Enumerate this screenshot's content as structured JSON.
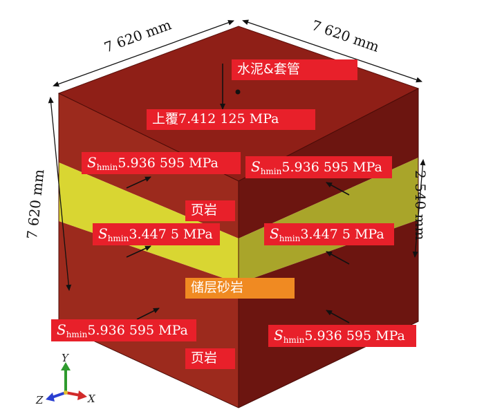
{
  "dimensions": {
    "top_left": "7 620 mm",
    "top_right": "7 620 mm",
    "left_height": "7 620 mm",
    "right_layer": "2 540 mm"
  },
  "labels": {
    "cement_casing": "水泥&套管",
    "overburden": "上覆7.412 125 MPa",
    "stress_symbol": "S",
    "stress_subscript": "hmin",
    "stress_shale": "5.936 595 MPa",
    "stress_sand": "3.447 5 MPa",
    "shale": "页岩",
    "reservoir_sand": "储层砂岩"
  },
  "axes": {
    "y": "Y",
    "z": "Z",
    "x": "X"
  },
  "colors": {
    "shale_top": "#8f1f17",
    "shale_left": "#9c2a1d",
    "shale_right": "#6c1510",
    "sand_left": "#d9d632",
    "sand_right": "#a9a52a",
    "label_red": "#e8202a",
    "label_orange": "#f08a22"
  }
}
